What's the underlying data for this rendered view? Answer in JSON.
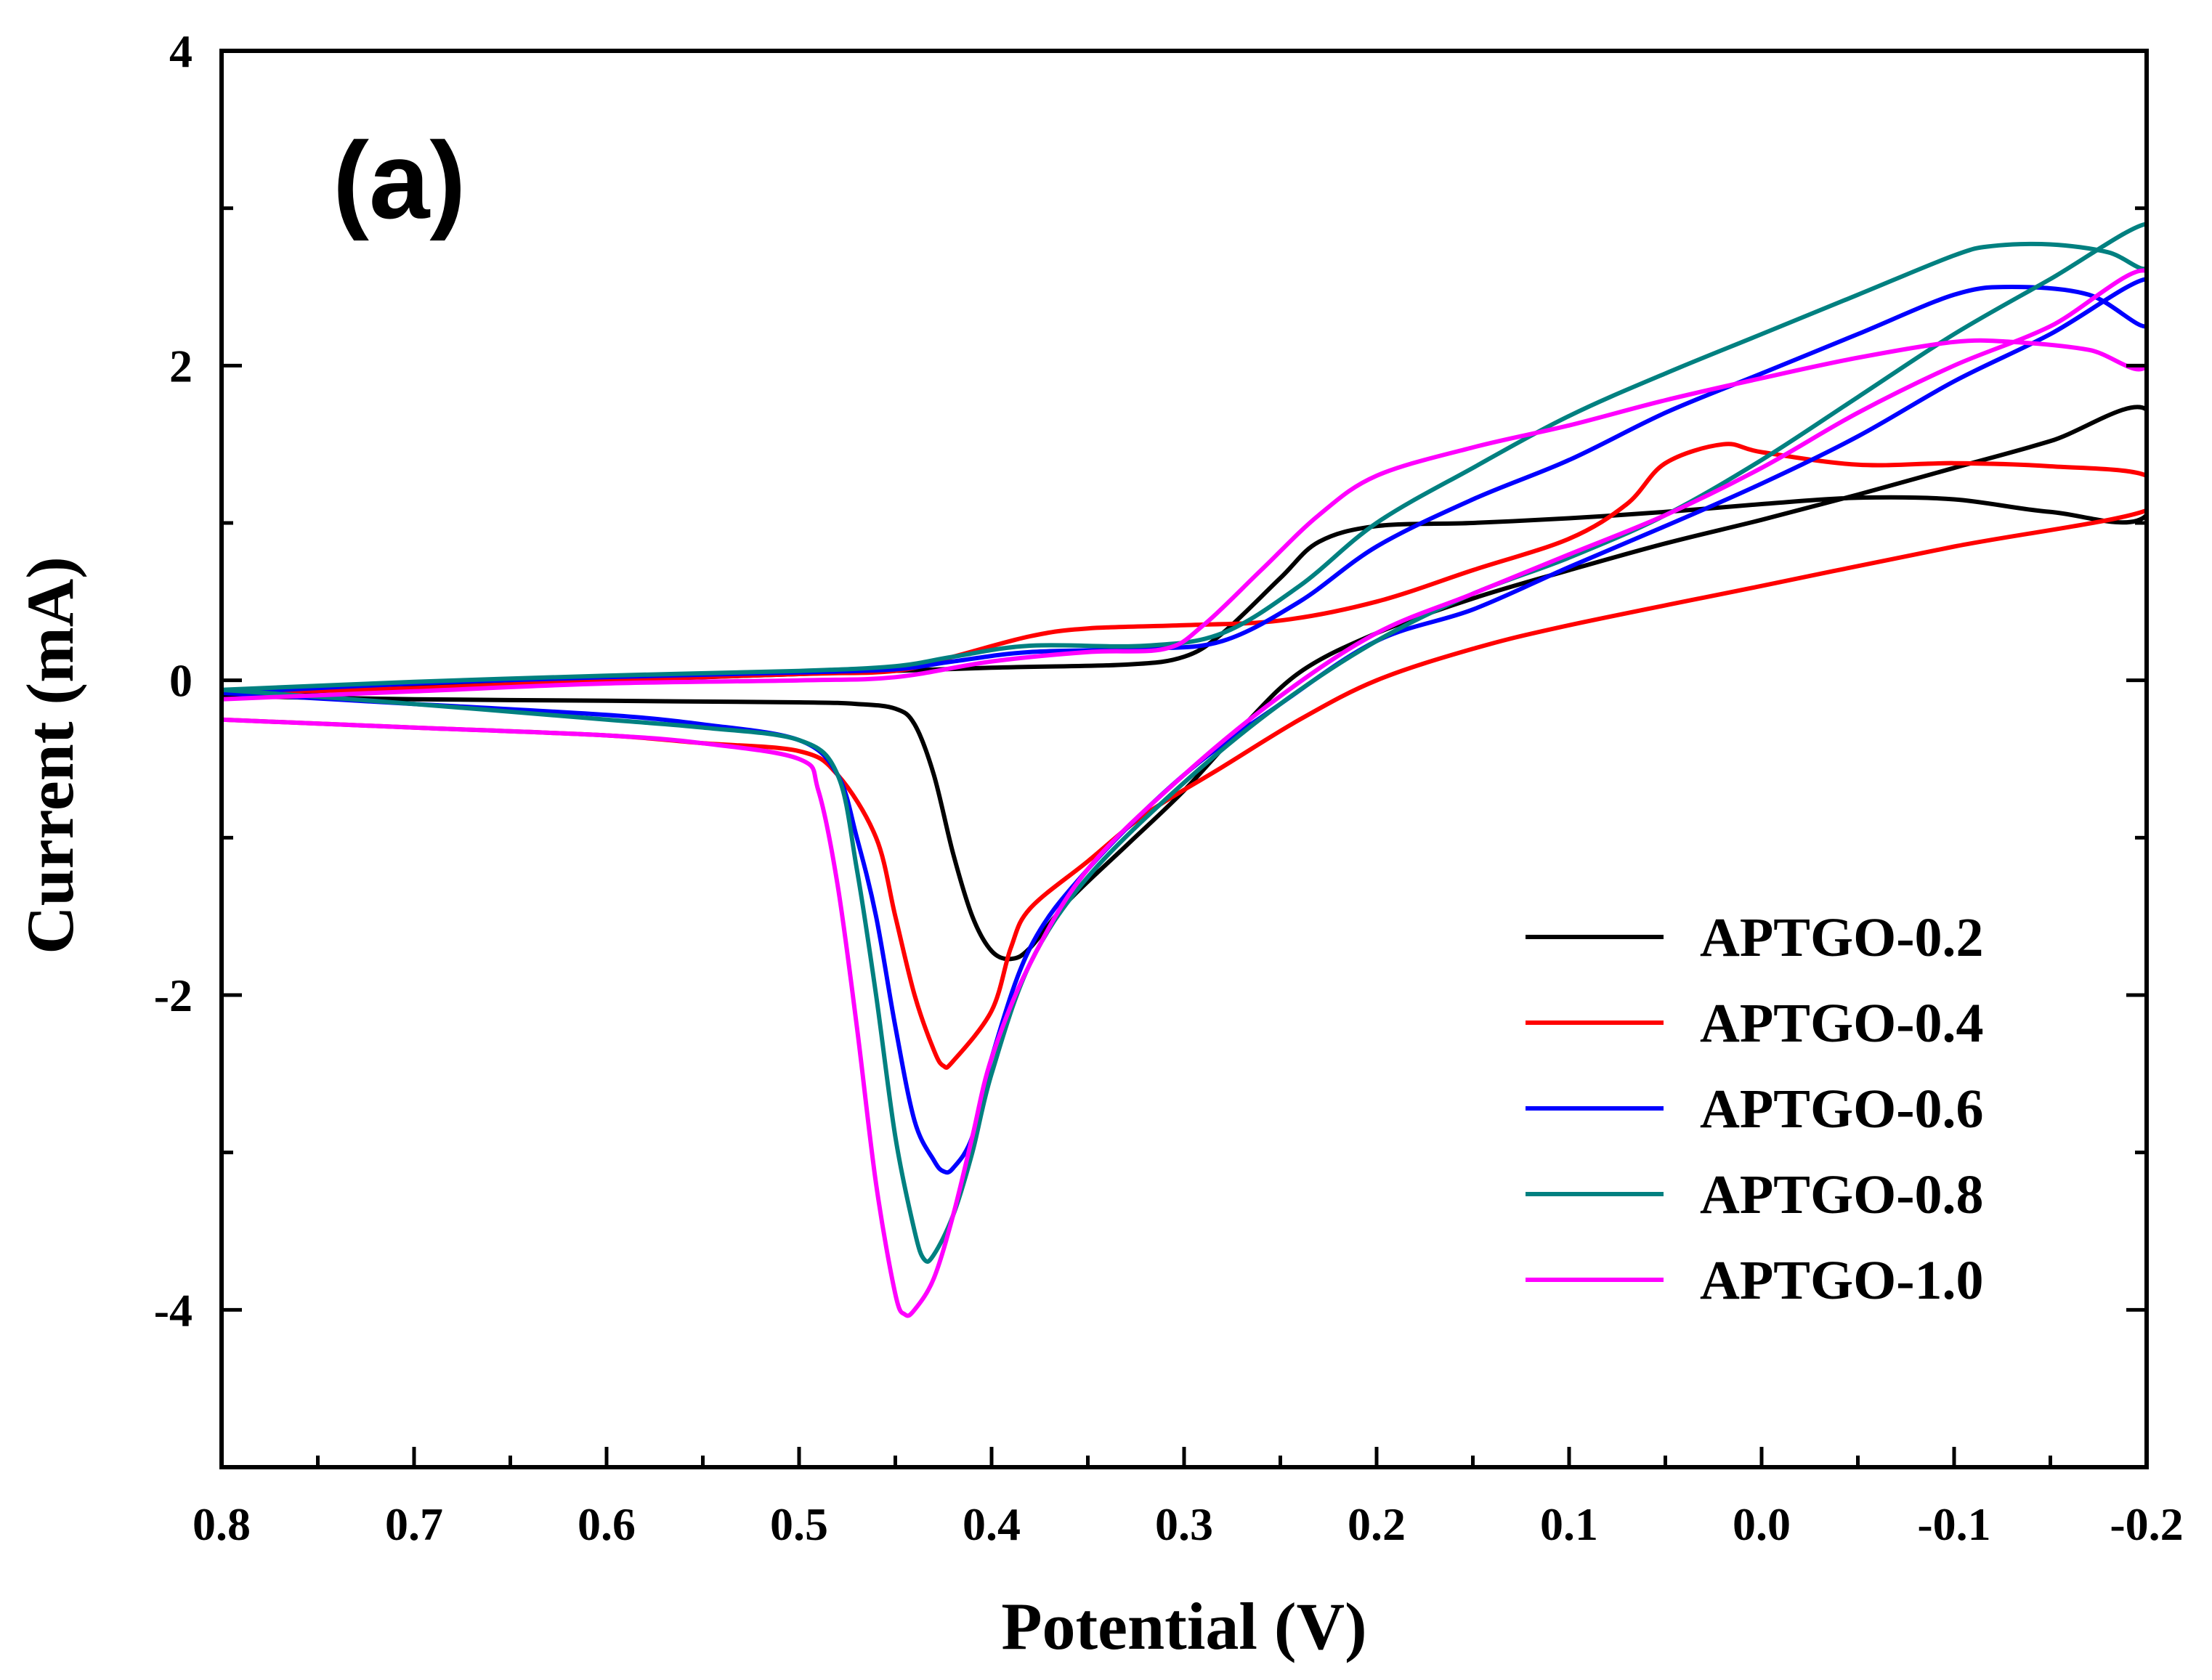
{
  "chart_data": {
    "type": "line",
    "title": "",
    "panel_label": "(a)",
    "xlabel": "Potential (V)",
    "ylabel": "Current (mA)",
    "xlim": [
      0.8,
      -0.2
    ],
    "ylim": [
      -5,
      4
    ],
    "x_ticks": [
      0.8,
      0.7,
      0.6,
      0.5,
      0.4,
      0.3,
      0.2,
      0.1,
      0.0,
      -0.1,
      -0.2
    ],
    "x_tick_labels": [
      "0.8",
      "0.7",
      "0.6",
      "0.5",
      "0.4",
      "0.3",
      "0.2",
      "0.1",
      "0.0",
      "-0.1",
      "-0.2"
    ],
    "y_ticks": [
      4,
      2,
      0,
      -2,
      -4
    ],
    "y_tick_labels": [
      "4",
      "2",
      "0",
      "-2",
      "-4"
    ],
    "legend_position": "bottom-right",
    "grid": false,
    "series": [
      {
        "name": "APTGO-0.2",
        "color": "#000000",
        "points": [
          [
            0.8,
            -0.1
          ],
          [
            0.7,
            -0.12
          ],
          [
            0.6,
            -0.13
          ],
          [
            0.5,
            -0.14
          ],
          [
            0.47,
            -0.15
          ],
          [
            0.45,
            -0.18
          ],
          [
            0.44,
            -0.28
          ],
          [
            0.43,
            -0.6
          ],
          [
            0.42,
            -1.1
          ],
          [
            0.41,
            -1.5
          ],
          [
            0.4,
            -1.72
          ],
          [
            0.39,
            -1.77
          ],
          [
            0.38,
            -1.7
          ],
          [
            0.36,
            -1.4
          ],
          [
            0.33,
            -1.05
          ],
          [
            0.3,
            -0.7
          ],
          [
            0.27,
            -0.3
          ],
          [
            0.24,
            0.05
          ],
          [
            0.2,
            0.3
          ],
          [
            0.15,
            0.52
          ],
          [
            0.1,
            0.7
          ],
          [
            0.05,
            0.87
          ],
          [
            0.0,
            1.02
          ],
          [
            -0.05,
            1.18
          ],
          [
            -0.1,
            1.35
          ],
          [
            -0.15,
            1.52
          ],
          [
            -0.2,
            1.72
          ],
          [
            -0.2,
            1.05
          ],
          [
            -0.15,
            1.07
          ],
          [
            -0.1,
            1.15
          ],
          [
            -0.05,
            1.16
          ],
          [
            0.0,
            1.12
          ],
          [
            0.05,
            1.07
          ],
          [
            0.1,
            1.03
          ],
          [
            0.15,
            1.0
          ],
          [
            0.2,
            0.98
          ],
          [
            0.23,
            0.88
          ],
          [
            0.25,
            0.65
          ],
          [
            0.28,
            0.3
          ],
          [
            0.3,
            0.15
          ],
          [
            0.33,
            0.1
          ],
          [
            0.4,
            0.08
          ],
          [
            0.5,
            0.04
          ],
          [
            0.6,
            0.0
          ],
          [
            0.7,
            -0.04
          ],
          [
            0.8,
            -0.1
          ]
        ]
      },
      {
        "name": "APTGO-0.4",
        "color": "#ff0000",
        "points": [
          [
            0.8,
            -0.25
          ],
          [
            0.7,
            -0.3
          ],
          [
            0.6,
            -0.35
          ],
          [
            0.55,
            -0.4
          ],
          [
            0.5,
            -0.45
          ],
          [
            0.48,
            -0.6
          ],
          [
            0.46,
            -1.0
          ],
          [
            0.45,
            -1.5
          ],
          [
            0.44,
            -2.0
          ],
          [
            0.43,
            -2.35
          ],
          [
            0.425,
            -2.45
          ],
          [
            0.42,
            -2.42
          ],
          [
            0.4,
            -2.1
          ],
          [
            0.39,
            -1.7
          ],
          [
            0.38,
            -1.45
          ],
          [
            0.35,
            -1.15
          ],
          [
            0.32,
            -0.85
          ],
          [
            0.28,
            -0.55
          ],
          [
            0.24,
            -0.25
          ],
          [
            0.2,
            0.0
          ],
          [
            0.15,
            0.2
          ],
          [
            0.1,
            0.35
          ],
          [
            0.0,
            0.6
          ],
          [
            -0.1,
            0.85
          ],
          [
            -0.2,
            1.08
          ],
          [
            -0.2,
            1.3
          ],
          [
            -0.15,
            1.36
          ],
          [
            -0.1,
            1.38
          ],
          [
            -0.05,
            1.37
          ],
          [
            0.0,
            1.45
          ],
          [
            0.02,
            1.5
          ],
          [
            0.05,
            1.38
          ],
          [
            0.07,
            1.12
          ],
          [
            0.1,
            0.9
          ],
          [
            0.15,
            0.7
          ],
          [
            0.2,
            0.5
          ],
          [
            0.25,
            0.38
          ],
          [
            0.3,
            0.35
          ],
          [
            0.35,
            0.33
          ],
          [
            0.38,
            0.28
          ],
          [
            0.42,
            0.15
          ],
          [
            0.45,
            0.06
          ],
          [
            0.5,
            0.04
          ],
          [
            0.6,
            0.0
          ],
          [
            0.7,
            -0.05
          ],
          [
            0.8,
            -0.08
          ]
        ]
      },
      {
        "name": "APTGO-0.6",
        "color": "#0000ff",
        "points": [
          [
            0.8,
            -0.08
          ],
          [
            0.7,
            -0.15
          ],
          [
            0.6,
            -0.22
          ],
          [
            0.55,
            -0.28
          ],
          [
            0.5,
            -0.38
          ],
          [
            0.48,
            -0.6
          ],
          [
            0.47,
            -1.0
          ],
          [
            0.46,
            -1.5
          ],
          [
            0.45,
            -2.2
          ],
          [
            0.44,
            -2.8
          ],
          [
            0.43,
            -3.05
          ],
          [
            0.425,
            -3.12
          ],
          [
            0.42,
            -3.1
          ],
          [
            0.41,
            -2.9
          ],
          [
            0.4,
            -2.4
          ],
          [
            0.38,
            -1.7
          ],
          [
            0.35,
            -1.2
          ],
          [
            0.3,
            -0.6
          ],
          [
            0.25,
            -0.15
          ],
          [
            0.2,
            0.25
          ],
          [
            0.15,
            0.45
          ],
          [
            0.1,
            0.72
          ],
          [
            0.05,
            0.98
          ],
          [
            0.0,
            1.25
          ],
          [
            -0.05,
            1.55
          ],
          [
            -0.1,
            1.9
          ],
          [
            -0.15,
            2.2
          ],
          [
            -0.2,
            2.55
          ],
          [
            -0.2,
            2.25
          ],
          [
            -0.17,
            2.45
          ],
          [
            -0.13,
            2.5
          ],
          [
            -0.1,
            2.45
          ],
          [
            -0.05,
            2.2
          ],
          [
            0.0,
            1.95
          ],
          [
            0.05,
            1.7
          ],
          [
            0.1,
            1.4
          ],
          [
            0.15,
            1.15
          ],
          [
            0.2,
            0.85
          ],
          [
            0.24,
            0.5
          ],
          [
            0.28,
            0.25
          ],
          [
            0.32,
            0.2
          ],
          [
            0.38,
            0.18
          ],
          [
            0.42,
            0.12
          ],
          [
            0.45,
            0.07
          ],
          [
            0.5,
            0.05
          ],
          [
            0.6,
            0.02
          ],
          [
            0.7,
            -0.02
          ],
          [
            0.8,
            -0.08
          ]
        ]
      },
      {
        "name": "APTGO-0.8",
        "color": "#008080",
        "points": [
          [
            0.8,
            -0.06
          ],
          [
            0.7,
            -0.15
          ],
          [
            0.6,
            -0.25
          ],
          [
            0.55,
            -0.3
          ],
          [
            0.5,
            -0.38
          ],
          [
            0.48,
            -0.6
          ],
          [
            0.47,
            -1.2
          ],
          [
            0.46,
            -2.0
          ],
          [
            0.45,
            -2.9
          ],
          [
            0.44,
            -3.5
          ],
          [
            0.435,
            -3.68
          ],
          [
            0.43,
            -3.65
          ],
          [
            0.42,
            -3.4
          ],
          [
            0.41,
            -3.0
          ],
          [
            0.4,
            -2.5
          ],
          [
            0.38,
            -1.8
          ],
          [
            0.35,
            -1.25
          ],
          [
            0.3,
            -0.65
          ],
          [
            0.25,
            -0.15
          ],
          [
            0.2,
            0.25
          ],
          [
            0.15,
            0.55
          ],
          [
            0.1,
            0.78
          ],
          [
            0.05,
            1.05
          ],
          [
            0.0,
            1.4
          ],
          [
            -0.05,
            1.8
          ],
          [
            -0.1,
            2.2
          ],
          [
            -0.15,
            2.55
          ],
          [
            -0.2,
            2.9
          ],
          [
            -0.2,
            2.62
          ],
          [
            -0.18,
            2.72
          ],
          [
            -0.15,
            2.77
          ],
          [
            -0.12,
            2.76
          ],
          [
            -0.1,
            2.7
          ],
          [
            -0.05,
            2.45
          ],
          [
            0.0,
            2.2
          ],
          [
            0.05,
            1.95
          ],
          [
            0.1,
            1.68
          ],
          [
            0.15,
            1.35
          ],
          [
            0.2,
            1.0
          ],
          [
            0.24,
            0.6
          ],
          [
            0.28,
            0.3
          ],
          [
            0.32,
            0.22
          ],
          [
            0.38,
            0.22
          ],
          [
            0.42,
            0.15
          ],
          [
            0.45,
            0.09
          ],
          [
            0.5,
            0.06
          ],
          [
            0.6,
            0.03
          ],
          [
            0.7,
            -0.01
          ],
          [
            0.8,
            -0.06
          ]
        ]
      },
      {
        "name": "APTGO-1.0",
        "color": "#ff00ff",
        "points": [
          [
            0.8,
            -0.25
          ],
          [
            0.7,
            -0.3
          ],
          [
            0.6,
            -0.35
          ],
          [
            0.55,
            -0.4
          ],
          [
            0.5,
            -0.5
          ],
          [
            0.49,
            -0.7
          ],
          [
            0.48,
            -1.3
          ],
          [
            0.47,
            -2.2
          ],
          [
            0.46,
            -3.2
          ],
          [
            0.45,
            -3.9
          ],
          [
            0.445,
            -4.03
          ],
          [
            0.44,
            -4.0
          ],
          [
            0.43,
            -3.8
          ],
          [
            0.42,
            -3.4
          ],
          [
            0.41,
            -2.9
          ],
          [
            0.4,
            -2.4
          ],
          [
            0.38,
            -1.8
          ],
          [
            0.35,
            -1.2
          ],
          [
            0.3,
            -0.6
          ],
          [
            0.25,
            -0.1
          ],
          [
            0.2,
            0.3
          ],
          [
            0.15,
            0.55
          ],
          [
            0.1,
            0.8
          ],
          [
            0.05,
            1.05
          ],
          [
            0.0,
            1.35
          ],
          [
            -0.05,
            1.7
          ],
          [
            -0.1,
            2.0
          ],
          [
            -0.15,
            2.25
          ],
          [
            -0.2,
            2.6
          ],
          [
            -0.2,
            2.0
          ],
          [
            -0.17,
            2.1
          ],
          [
            -0.13,
            2.15
          ],
          [
            -0.1,
            2.15
          ],
          [
            -0.05,
            2.05
          ],
          [
            0.0,
            1.92
          ],
          [
            0.05,
            1.78
          ],
          [
            0.1,
            1.62
          ],
          [
            0.15,
            1.48
          ],
          [
            0.2,
            1.3
          ],
          [
            0.23,
            1.05
          ],
          [
            0.26,
            0.7
          ],
          [
            0.29,
            0.35
          ],
          [
            0.31,
            0.2
          ],
          [
            0.35,
            0.18
          ],
          [
            0.4,
            0.12
          ],
          [
            0.45,
            0.02
          ],
          [
            0.5,
            0.0
          ],
          [
            0.6,
            -0.02
          ],
          [
            0.7,
            -0.07
          ],
          [
            0.8,
            -0.12
          ]
        ]
      }
    ]
  }
}
